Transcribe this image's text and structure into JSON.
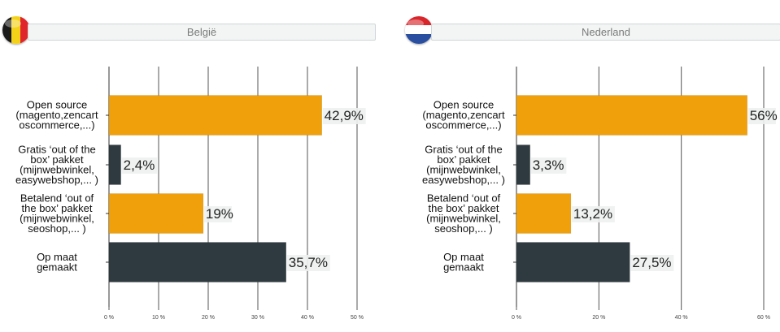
{
  "colors": {
    "orange": "#f0a00a",
    "dark": "#2f3a40",
    "grid": "#555555",
    "label_bg": "#eef1f1"
  },
  "chart_data": [
    {
      "type": "bar",
      "orientation": "horizontal",
      "title": "België",
      "flag": "belgium-flag-icon",
      "categories": [
        [
          "Open source",
          "(magento,zencart",
          "oscommerce,...)"
        ],
        [
          "Gratis ‘out of the",
          "box’ pakket",
          "(mijnwebwinkel,",
          "easywebshop,... )"
        ],
        [
          "Betalend ‘out of",
          "the box’ pakket",
          "(mijnwebwinkel,",
          "seoshop,... )"
        ],
        [
          "Op maat",
          "gemaakt"
        ]
      ],
      "values": [
        42.9,
        2.4,
        19,
        35.7
      ],
      "value_labels": [
        "42,9%",
        "2,4%",
        "19%",
        "35,7%"
      ],
      "bar_colors": [
        "#f0a00a",
        "#2f3a40",
        "#f0a00a",
        "#2f3a40"
      ],
      "xlim": [
        0,
        50
      ],
      "ticks": [
        0,
        10,
        20,
        30,
        40,
        50
      ],
      "tick_labels": [
        "0 %",
        "10 %",
        "20 %",
        "30 %",
        "40 %",
        "50 %"
      ],
      "grid": true
    },
    {
      "type": "bar",
      "orientation": "horizontal",
      "title": "Nederland",
      "flag": "netherlands-flag-icon",
      "categories": [
        [
          "Open source",
          "(magento,zencart",
          "oscommerce,...)"
        ],
        [
          "Gratis ‘out of the",
          "box’ pakket",
          "(mijnwebwinkel,",
          "easywebshop,... )"
        ],
        [
          "Betalend ‘out of",
          "the box’ pakket",
          "(mijnwebwinkel,",
          "seoshop,... )"
        ],
        [
          "Op maat",
          "gemaakt"
        ]
      ],
      "values": [
        56,
        3.3,
        13.2,
        27.5
      ],
      "value_labels": [
        "56%",
        "3,3%",
        "13,2%",
        "27,5%"
      ],
      "bar_colors": [
        "#f0a00a",
        "#2f3a40",
        "#f0a00a",
        "#2f3a40"
      ],
      "xlim": [
        0,
        60
      ],
      "ticks": [
        0,
        20,
        40,
        60
      ],
      "tick_labels": [
        "0 %",
        "20 %",
        "40 %",
        "60 %"
      ],
      "grid": true
    }
  ]
}
